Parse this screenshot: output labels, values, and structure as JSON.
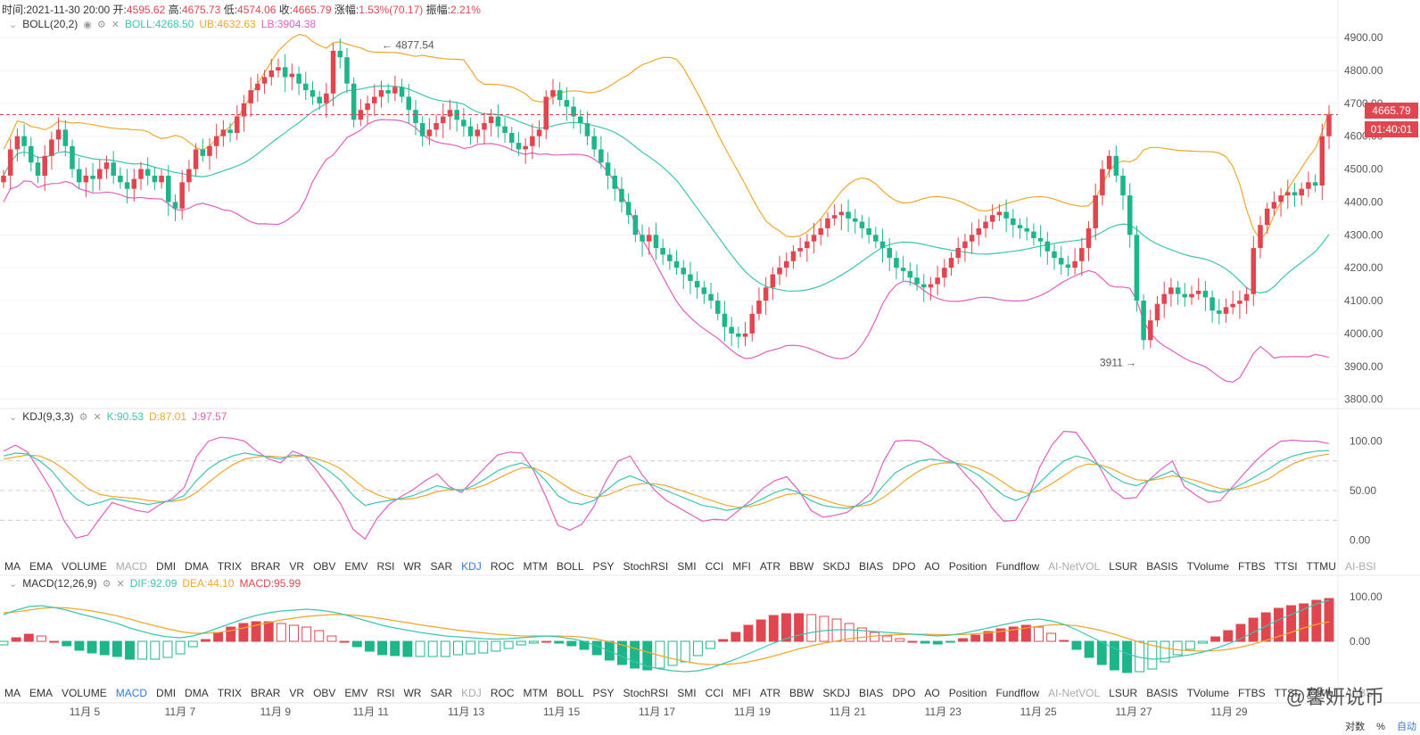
{
  "header": {
    "time_label": "时间:",
    "time": "2021-11-30 20:00",
    "open_label": "开:",
    "open": "4595.62",
    "high_label": "高:",
    "high": "4675.73",
    "low_label": "低:",
    "low": "4574.06",
    "close_label": "收:",
    "close": "4665.79",
    "chg_label": "涨幅:",
    "chg": "1.53%(70.17)",
    "amp_label": "振幅:",
    "amp": "2.21%"
  },
  "boll": {
    "name": "BOLL(20,2)",
    "mid": "BOLL:4268.50",
    "ub": "UB:4632.63",
    "lb": "LB:3904.38"
  },
  "kdj": {
    "name": "KDJ(9,3,3)",
    "k": "K:90.53",
    "d": "D:87.01",
    "j": "J:97.57"
  },
  "macd": {
    "name": "MACD(12,26,9)",
    "dif": "DIF:92.09",
    "dea": "DEA:44.10",
    "macd": "MACD:95.99"
  },
  "price_tag": "4665.79",
  "countdown_tag": "01:40:01",
  "annotations": {
    "high_mark": "4877.54",
    "low_mark": "3911"
  },
  "tabs_row1": [
    "MA",
    "EMA",
    "VOLUME",
    "MACD",
    "DMI",
    "DMA",
    "TRIX",
    "BRAR",
    "VR",
    "OBV",
    "EMV",
    "RSI",
    "WR",
    "SAR",
    "KDJ",
    "ROC",
    "MTM",
    "BOLL",
    "PSY",
    "StochRSI",
    "SMI",
    "CCI",
    "MFI",
    "ATR",
    "BBW",
    "SKDJ",
    "BIAS",
    "DPO",
    "AO",
    "Position",
    "Fundflow",
    "AI-NetVOL",
    "LSUR",
    "BASIS",
    "TVolume",
    "FTBS",
    "TTSI",
    "TTMU",
    "AI-BSI"
  ],
  "tabs_row2": [
    "MA",
    "EMA",
    "VOLUME",
    "MACD",
    "DMI",
    "DMA",
    "TRIX",
    "BRAR",
    "VR",
    "OBV",
    "EMV",
    "RSI",
    "WR",
    "SAR",
    "KDJ",
    "ROC",
    "MTM",
    "BOLL",
    "PSY",
    "StochRSI",
    "SMI",
    "CCI",
    "MFI",
    "ATR",
    "BBW",
    "SKDJ",
    "BIAS",
    "DPO",
    "AO",
    "Position",
    "Fundflow",
    "AI-NetVOL",
    "LSUR",
    "BASIS",
    "TVolume",
    "FTBS",
    "TTSI",
    "TTMU",
    "AI-BSI"
  ],
  "active_tab_row1": "KDJ",
  "active_tab_row2": "MACD",
  "footer": {
    "log": "对数",
    "pct": "%",
    "auto": "自动"
  },
  "watermark": "@馨妍说币",
  "colors": {
    "up": "#e0464f",
    "down": "#1db589",
    "mid": "#3cc5b0",
    "ub": "#f0a82c",
    "lb": "#e35fc1",
    "k": "#3cc5b0",
    "d": "#f0a82c",
    "j": "#e35fc1"
  },
  "chart_data": {
    "type": "candlestick",
    "x_ticks": [
      "11月 5",
      "11月 7",
      "11月 9",
      "11月 11",
      "11月 13",
      "11月 15",
      "11月 17",
      "11月 19",
      "11月 21",
      "11月 23",
      "11月 25",
      "11月 27",
      "11月 29"
    ],
    "price_ticks": [
      3800,
      3900,
      4000,
      4100,
      4200,
      4300,
      4400,
      4500,
      4600,
      4700,
      4800,
      4900
    ],
    "kdj_ticks": [
      0,
      50,
      100
    ],
    "macd_ticks": [
      0,
      100
    ],
    "closes": [
      4480,
      4560,
      4600,
      4570,
      4520,
      4480,
      4540,
      4590,
      4620,
      4570,
      4500,
      4460,
      4480,
      4470,
      4500,
      4520,
      4480,
      4460,
      4440,
      4470,
      4500,
      4480,
      4460,
      4480,
      4400,
      4380,
      4460,
      4500,
      4560,
      4540,
      4570,
      4600,
      4620,
      4610,
      4660,
      4700,
      4740,
      4760,
      4780,
      4800,
      4810,
      4780,
      4790,
      4760,
      4740,
      4720,
      4700,
      4730,
      4860,
      4840,
      4760,
      4650,
      4680,
      4700,
      4720,
      4740,
      4730,
      4750,
      4720,
      4680,
      4640,
      4600,
      4620,
      4640,
      4660,
      4680,
      4650,
      4630,
      4600,
      4620,
      4640,
      4660,
      4630,
      4610,
      4580,
      4560,
      4570,
      4600,
      4620,
      4720,
      4740,
      4710,
      4690,
      4660,
      4640,
      4600,
      4560,
      4520,
      4480,
      4440,
      4400,
      4360,
      4300,
      4280,
      4300,
      4260,
      4240,
      4220,
      4200,
      4180,
      4160,
      4140,
      4120,
      4100,
      4060,
      4020,
      4000,
      3990,
      4000,
      4060,
      4100,
      4140,
      4180,
      4200,
      4220,
      4250,
      4260,
      4280,
      4300,
      4320,
      4350,
      4360,
      4370,
      4350,
      4340,
      4320,
      4300,
      4280,
      4260,
      4230,
      4200,
      4190,
      4170,
      4150,
      4140,
      4150,
      4170,
      4200,
      4230,
      4260,
      4280,
      4300,
      4320,
      4340,
      4360,
      4370,
      4350,
      4330,
      4320,
      4310,
      4290,
      4280,
      4250,
      4230,
      4210,
      4200,
      4220,
      4260,
      4320,
      4420,
      4500,
      4540,
      4480,
      4420,
      4300,
      4100,
      3980,
      4040,
      4090,
      4120,
      4140,
      4120,
      4110,
      4120,
      4130,
      4110,
      4070,
      4060,
      4080,
      4090,
      4100,
      4120,
      4260,
      4330,
      4380,
      4400,
      4420,
      4430,
      4420,
      4440,
      4460,
      4450,
      4600,
      4665.79
    ],
    "kdj_k": [
      85,
      88,
      87,
      80,
      70,
      55,
      42,
      35,
      38,
      42,
      40,
      38,
      36,
      38,
      40,
      45,
      60,
      72,
      80,
      85,
      88,
      86,
      84,
      82,
      86,
      85,
      78,
      70,
      60,
      45,
      35,
      38,
      40,
      42,
      45,
      50,
      55,
      52,
      50,
      55,
      62,
      70,
      75,
      78,
      72,
      60,
      45,
      38,
      36,
      40,
      50,
      60,
      65,
      60,
      55,
      50,
      45,
      40,
      35,
      33,
      30,
      32,
      36,
      42,
      48,
      52,
      48,
      40,
      35,
      33,
      32,
      35,
      40,
      55,
      68,
      75,
      80,
      82,
      80,
      78,
      72,
      65,
      55,
      45,
      40,
      45,
      58,
      70,
      80,
      85,
      82,
      75,
      65,
      58,
      55,
      60,
      65,
      70,
      60,
      55,
      50,
      48,
      52,
      58,
      65,
      72,
      80,
      85,
      88,
      90,
      90.53
    ],
    "kdj_d": [
      82,
      84,
      86,
      85,
      80,
      72,
      62,
      52,
      46,
      44,
      43,
      42,
      40,
      39,
      39,
      41,
      48,
      58,
      68,
      76,
      82,
      84,
      85,
      84,
      84,
      85,
      82,
      78,
      72,
      62,
      52,
      46,
      42,
      41,
      42,
      45,
      49,
      51,
      51,
      52,
      56,
      62,
      68,
      73,
      73,
      68,
      60,
      52,
      46,
      43,
      45,
      50,
      55,
      57,
      57,
      55,
      51,
      47,
      43,
      39,
      35,
      33,
      34,
      37,
      42,
      46,
      47,
      45,
      41,
      37,
      34,
      34,
      36,
      43,
      52,
      62,
      70,
      76,
      78,
      78,
      76,
      72,
      66,
      58,
      50,
      47,
      50,
      57,
      65,
      73,
      77,
      76,
      72,
      66,
      61,
      60,
      62,
      65,
      63,
      60,
      56,
      52,
      51,
      53,
      57,
      62,
      70,
      77,
      82,
      85,
      87.01
    ],
    "kdj_j": [
      90,
      96,
      89,
      70,
      50,
      20,
      2,
      5,
      22,
      38,
      34,
      30,
      28,
      36,
      42,
      53,
      84,
      100,
      104,
      103,
      100,
      90,
      82,
      78,
      90,
      85,
      70,
      54,
      36,
      11,
      1,
      22,
      36,
      44,
      51,
      60,
      67,
      54,
      48,
      61,
      74,
      86,
      89,
      88,
      70,
      44,
      15,
      10,
      16,
      34,
      60,
      80,
      85,
      66,
      51,
      40,
      33,
      26,
      19,
      21,
      20,
      30,
      40,
      52,
      60,
      64,
      50,
      30,
      23,
      25,
      28,
      37,
      48,
      79,
      100,
      101,
      100,
      94,
      84,
      78,
      64,
      51,
      33,
      19,
      20,
      41,
      74,
      96,
      110,
      109,
      92,
      73,
      51,
      42,
      43,
      60,
      71,
      80,
      54,
      45,
      38,
      40,
      54,
      68,
      81,
      92,
      100,
      101,
      100,
      100,
      97.57
    ],
    "macd_dif": [
      60,
      70,
      78,
      80,
      76,
      70,
      62,
      55,
      48,
      40,
      30,
      22,
      15,
      10,
      8,
      12,
      20,
      30,
      40,
      50,
      58,
      64,
      68,
      70,
      72,
      70,
      66,
      60,
      52,
      44,
      36,
      30,
      25,
      20,
      16,
      12,
      10,
      8,
      6,
      5,
      6,
      8,
      10,
      12,
      10,
      6,
      0,
      -10,
      -22,
      -34,
      -46,
      -56,
      -62,
      -66,
      -68,
      -66,
      -60,
      -50,
      -40,
      -28,
      -16,
      -4,
      6,
      14,
      20,
      24,
      26,
      26,
      24,
      22,
      20,
      18,
      16,
      14,
      12,
      14,
      18,
      24,
      30,
      36,
      42,
      48,
      50,
      46,
      38,
      26,
      12,
      -2,
      -16,
      -28,
      -36,
      -40,
      -38,
      -34,
      -30,
      -24,
      -16,
      -6,
      6,
      20,
      34,
      48,
      60,
      72,
      84,
      92.09
    ],
    "macd_dea": [
      64,
      66,
      70,
      74,
      76,
      75,
      72,
      68,
      63,
      57,
      50,
      42,
      35,
      28,
      22,
      18,
      18,
      20,
      24,
      30,
      36,
      42,
      48,
      52,
      56,
      58,
      60,
      60,
      58,
      55,
      51,
      46,
      42,
      37,
      33,
      29,
      25,
      22,
      19,
      16,
      14,
      12,
      12,
      12,
      12,
      11,
      9,
      5,
      -1,
      -8,
      -16,
      -24,
      -32,
      -39,
      -45,
      -50,
      -52,
      -52,
      -50,
      -46,
      -40,
      -33,
      -25,
      -17,
      -10,
      -4,
      1,
      6,
      9,
      12,
      14,
      15,
      16,
      16,
      15,
      15,
      15,
      17,
      19,
      22,
      26,
      30,
      34,
      37,
      37,
      35,
      30,
      24,
      16,
      7,
      -2,
      -9,
      -15,
      -19,
      -21,
      -22,
      -21,
      -18,
      -13,
      -6,
      2,
      11,
      20,
      30,
      38,
      44.1
    ]
  }
}
